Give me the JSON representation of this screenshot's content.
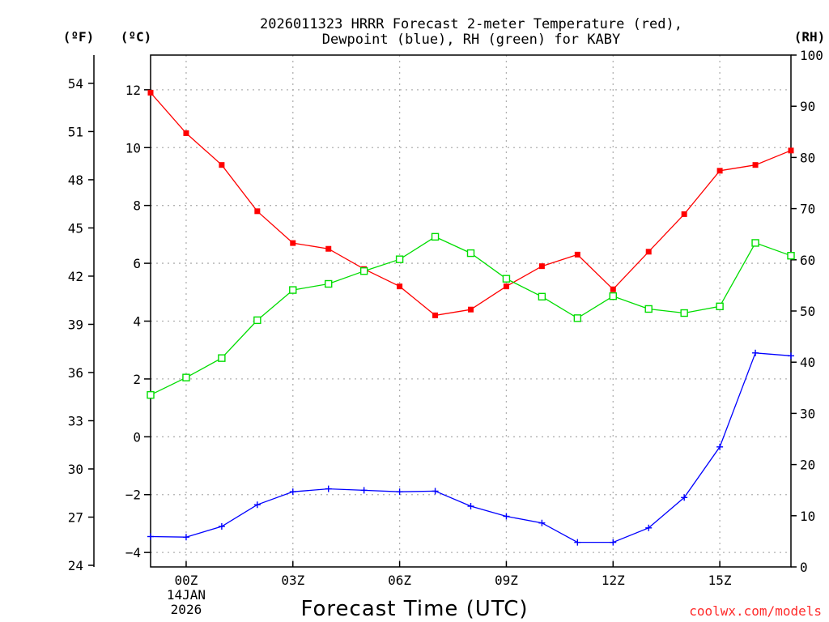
{
  "chart_data": {
    "type": "line",
    "title_line1": "2026011323 HRRR Forecast 2-meter Temperature (red),",
    "title_line2": "Dewpoint (blue), RH (green) for KABY",
    "xlabel": "Forecast Time (UTC)",
    "credit": "coolwx.com/models",
    "left_unit_f": "(ºF)",
    "left_unit_c": "(ºC)",
    "right_unit": "(RH)",
    "x_range_hours": [
      -1,
      17
    ],
    "x": [
      -1,
      0,
      1,
      2,
      3,
      4,
      5,
      6,
      7,
      8,
      9,
      10,
      11,
      12,
      13,
      14,
      15,
      16,
      17
    ],
    "x_ticks": [
      {
        "hour": 0,
        "label": "00Z",
        "sub1": "14JAN",
        "sub2": "2026"
      },
      {
        "hour": 3,
        "label": "03Z"
      },
      {
        "hour": 6,
        "label": "06Z"
      },
      {
        "hour": 9,
        "label": "09Z"
      },
      {
        "hour": 12,
        "label": "12Z"
      },
      {
        "hour": 15,
        "label": "15Z"
      }
    ],
    "ylim_c": [
      -4.5,
      13.2
    ],
    "yticks_c": [
      "12",
      "10",
      "8",
      "6",
      "4",
      "2",
      "0",
      "−2",
      "−4"
    ],
    "yticks_c_values": [
      12,
      10,
      8,
      6,
      4,
      2,
      0,
      -2,
      -4
    ],
    "yticks_f": [
      "54",
      "51",
      "48",
      "45",
      "42",
      "39",
      "36",
      "33",
      "30",
      "27",
      "24"
    ],
    "yticks_f_values": [
      54,
      51,
      48,
      45,
      42,
      39,
      36,
      33,
      30,
      27,
      24
    ],
    "ylim_rh": [
      0,
      100
    ],
    "yticks_rh": [
      "100",
      "90",
      "80",
      "70",
      "60",
      "50",
      "40",
      "30",
      "20",
      "10",
      "0"
    ],
    "yticks_rh_values": [
      100,
      90,
      80,
      70,
      60,
      50,
      40,
      30,
      20,
      10,
      0
    ],
    "series": [
      {
        "name": "2-meter Temperature",
        "axis": "C",
        "color": "#ff0000",
        "marker": "filled-square",
        "values": [
          11.9,
          10.5,
          9.4,
          7.8,
          6.7,
          6.5,
          5.8,
          5.2,
          4.2,
          4.4,
          5.2,
          5.9,
          6.3,
          5.1,
          6.4,
          7.7,
          9.2,
          9.4,
          9.9
        ]
      },
      {
        "name": "Dewpoint",
        "axis": "C",
        "color": "#0000ff",
        "marker": "plus",
        "values": [
          -3.45,
          -3.47,
          -3.1,
          -2.35,
          -1.9,
          -1.8,
          -1.85,
          -1.9,
          -1.88,
          -2.4,
          -2.75,
          -2.98,
          -3.65,
          -3.65,
          -3.15,
          -2.1,
          -0.35,
          2.9,
          2.8
        ]
      },
      {
        "name": "RH",
        "axis": "RH",
        "color": "#00dd00",
        "marker": "open-square",
        "values": [
          33.6,
          37.0,
          40.8,
          48.2,
          54.1,
          55.3,
          57.8,
          60.1,
          64.5,
          61.3,
          56.3,
          52.8,
          48.6,
          52.9,
          50.4,
          49.6,
          50.9,
          63.3,
          60.8
        ]
      }
    ],
    "grid": true
  }
}
